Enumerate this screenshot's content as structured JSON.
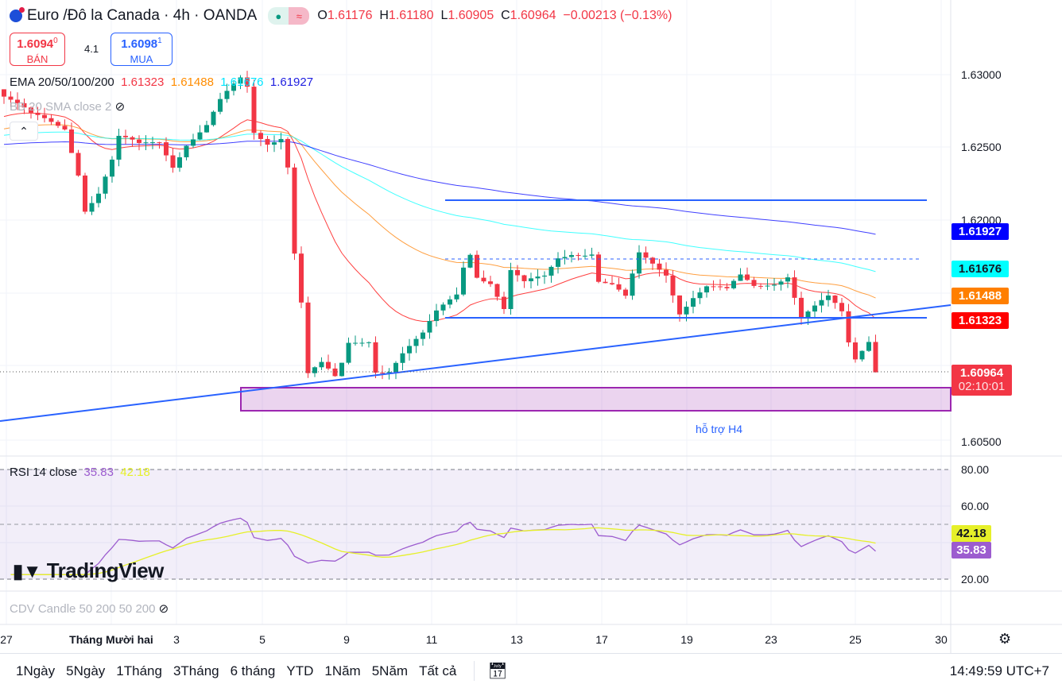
{
  "header": {
    "symbol": "Euro /Đô la Canada · 4h · OANDA",
    "o_label": "O",
    "o": "1.61176",
    "h_label": "H",
    "h": "1.61180",
    "l_label": "L",
    "l": "1.60905",
    "c_label": "C",
    "c": "1.60964",
    "change": "−0.00213 (−0.13%)"
  },
  "trade": {
    "sell_price": "1.6094",
    "sell_sup": "0",
    "sell_label": "BÁN",
    "spread": "4.1",
    "buy_price": "1.6098",
    "buy_sup": "1",
    "buy_label": "MUA"
  },
  "indicators": {
    "ema_label": "EMA 20/50/100/200",
    "ema20": "1.61323",
    "ema50": "1.61488",
    "ema100": "1.61676",
    "ema200": "1.61927",
    "bb_label": "BB 20 SMA close 2",
    "rsi_label": "RSI 14 close",
    "rsi": "35.83",
    "rsi_ma": "42.18",
    "cdv_label": "CDV Candle 50 200 50 200"
  },
  "colors": {
    "up": "#089981",
    "down": "#f23645",
    "ema20": "#ff0000",
    "ema50": "#ff7f00",
    "ema100": "#00ffff",
    "ema200": "#0000ff",
    "rsi": "#9c5ccf",
    "rsi_ma": "#e6f029",
    "trend": "#2962ff",
    "zone": "#9c27b0"
  },
  "price_axis": {
    "ticks": [
      "1.63000",
      "1.62500",
      "1.62000",
      "1.60500"
    ],
    "tags": {
      "ema200": "1.61927",
      "ema100": "1.61676",
      "ema50": "1.61488",
      "ema20": "1.61323",
      "last": "1.60964",
      "countdown": "02:10:01"
    }
  },
  "rsi_axis": {
    "ticks": [
      "80.00",
      "60.00",
      "20.00"
    ]
  },
  "annotation": "hỗ trợ H4",
  "watermark": "TradingView",
  "dates": [
    "27",
    "Tháng Mười hai",
    "3",
    "5",
    "9",
    "11",
    "13",
    "17",
    "19",
    "23",
    "25",
    "30"
  ],
  "ranges": [
    "1Ngày",
    "5Ngày",
    "1Tháng",
    "3Tháng",
    "6 tháng",
    "YTD",
    "1Năm",
    "5Năm",
    "Tất cả"
  ],
  "clock": "14:49:59 UTC+7",
  "chart_data": {
    "type": "candlestick",
    "note": "approximate close path keypoints [bar_index, price]",
    "keypoints": [
      [
        0,
        1.6285
      ],
      [
        4,
        1.627
      ],
      [
        9,
        1.6265
      ],
      [
        11,
        1.6235
      ],
      [
        12,
        1.621
      ],
      [
        14,
        1.622
      ],
      [
        16,
        1.624
      ],
      [
        17,
        1.6255
      ],
      [
        20,
        1.625
      ],
      [
        23,
        1.6255
      ],
      [
        25,
        1.624
      ],
      [
        27,
        1.6255
      ],
      [
        30,
        1.6265
      ],
      [
        32,
        1.628
      ],
      [
        35,
        1.6295
      ],
      [
        36,
        1.629
      ],
      [
        37,
        1.626
      ],
      [
        39,
        1.6255
      ],
      [
        41,
        1.626
      ],
      [
        42,
        1.624
      ],
      [
        43,
        1.618
      ],
      [
        44,
        1.6145
      ],
      [
        45,
        1.6095
      ],
      [
        47,
        1.61
      ],
      [
        49,
        1.609
      ],
      [
        50,
        1.61
      ],
      [
        51,
        1.6115
      ],
      [
        54,
        1.612
      ],
      [
        55,
        1.61
      ],
      [
        57,
        1.61
      ],
      [
        59,
        1.611
      ],
      [
        62,
        1.612
      ],
      [
        64,
        1.6135
      ],
      [
        67,
        1.615
      ],
      [
        68,
        1.617
      ],
      [
        69,
        1.618
      ],
      [
        70,
        1.6165
      ],
      [
        72,
        1.616
      ],
      [
        74,
        1.614
      ],
      [
        75,
        1.6165
      ],
      [
        77,
        1.6155
      ],
      [
        80,
        1.616
      ],
      [
        82,
        1.6175
      ],
      [
        84,
        1.618
      ],
      [
        87,
        1.618
      ],
      [
        88,
        1.616
      ],
      [
        90,
        1.6155
      ],
      [
        92,
        1.6145
      ],
      [
        94,
        1.6175
      ],
      [
        96,
        1.617
      ],
      [
        98,
        1.6165
      ],
      [
        100,
        1.614
      ],
      [
        102,
        1.615
      ],
      [
        104,
        1.6155
      ],
      [
        107,
        1.615
      ],
      [
        109,
        1.616
      ],
      [
        111,
        1.6155
      ],
      [
        114,
        1.616
      ],
      [
        116,
        1.6165
      ],
      [
        117,
        1.615
      ],
      [
        118,
        1.6135
      ],
      [
        120,
        1.614
      ],
      [
        122,
        1.6145
      ],
      [
        124,
        1.6135
      ],
      [
        125,
        1.6115
      ],
      [
        126,
        1.6105
      ],
      [
        128,
        1.612
      ],
      [
        129,
        1.60964
      ]
    ],
    "ylim": [
      1.604,
      1.632
    ]
  }
}
